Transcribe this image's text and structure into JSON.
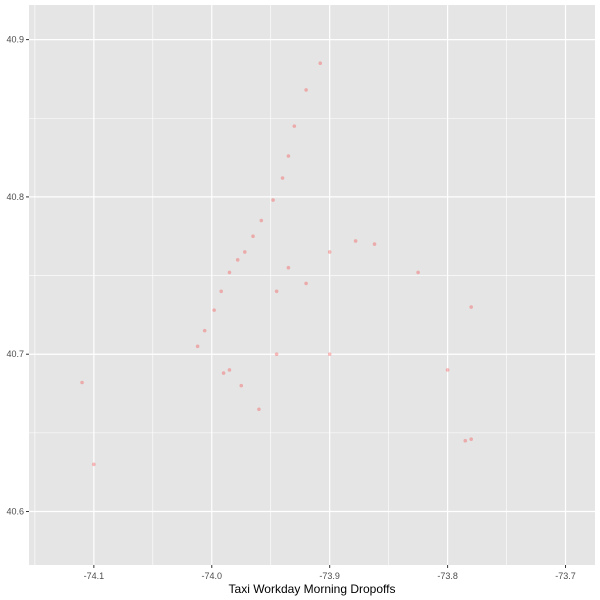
{
  "chart_data": {
    "type": "scatter",
    "title": "",
    "xlabel": "Taxi Workday Morning Dropoffs",
    "ylabel": "",
    "xlim": [
      -74.155,
      -73.675
    ],
    "ylim": [
      40.566,
      40.922
    ],
    "x_ticks": [
      -74.1,
      -74.0,
      -73.9,
      -73.8,
      -73.7
    ],
    "x_tick_labels": [
      "-74.1",
      "-74.0",
      "-73.9",
      "-73.8",
      "-73.7"
    ],
    "y_ticks": [
      40.6,
      40.7,
      40.8,
      40.9
    ],
    "y_tick_labels": [
      "40.6",
      "40.7",
      "40.8",
      "40.9"
    ],
    "grid": true,
    "background": "#e5e5e5",
    "grid_color": "#ffffff",
    "point_color": "#ff0000",
    "point_alpha": 0.25,
    "series": [
      {
        "values": [
          {
            "x": -73.985,
            "y": 40.752
          },
          {
            "x": -73.978,
            "y": 40.76
          },
          {
            "x": -73.972,
            "y": 40.765
          },
          {
            "x": -73.992,
            "y": 40.74
          },
          {
            "x": -73.998,
            "y": 40.728
          },
          {
            "x": -74.006,
            "y": 40.715
          },
          {
            "x": -74.012,
            "y": 40.705
          },
          {
            "x": -73.965,
            "y": 40.775
          },
          {
            "x": -73.958,
            "y": 40.785
          },
          {
            "x": -73.948,
            "y": 40.798
          },
          {
            "x": -73.94,
            "y": 40.812
          },
          {
            "x": -73.935,
            "y": 40.826
          },
          {
            "x": -73.93,
            "y": 40.845
          },
          {
            "x": -73.92,
            "y": 40.868
          },
          {
            "x": -73.908,
            "y": 40.885
          },
          {
            "x": -73.945,
            "y": 40.74
          },
          {
            "x": -73.935,
            "y": 40.755
          },
          {
            "x": -73.92,
            "y": 40.745
          },
          {
            "x": -73.9,
            "y": 40.765
          },
          {
            "x": -73.878,
            "y": 40.772
          },
          {
            "x": -73.862,
            "y": 40.77
          },
          {
            "x": -73.985,
            "y": 40.69
          },
          {
            "x": -73.975,
            "y": 40.68
          },
          {
            "x": -73.96,
            "y": 40.665
          },
          {
            "x": -73.99,
            "y": 40.688
          },
          {
            "x": -73.945,
            "y": 40.7
          },
          {
            "x": -73.9,
            "y": 40.7
          },
          {
            "x": -73.8,
            "y": 40.69
          },
          {
            "x": -73.785,
            "y": 40.645
          },
          {
            "x": -73.78,
            "y": 40.646
          },
          {
            "x": -74.11,
            "y": 40.682
          },
          {
            "x": -74.1,
            "y": 40.63
          },
          {
            "x": -73.78,
            "y": 40.73
          },
          {
            "x": -73.825,
            "y": 40.752
          }
        ]
      }
    ]
  }
}
